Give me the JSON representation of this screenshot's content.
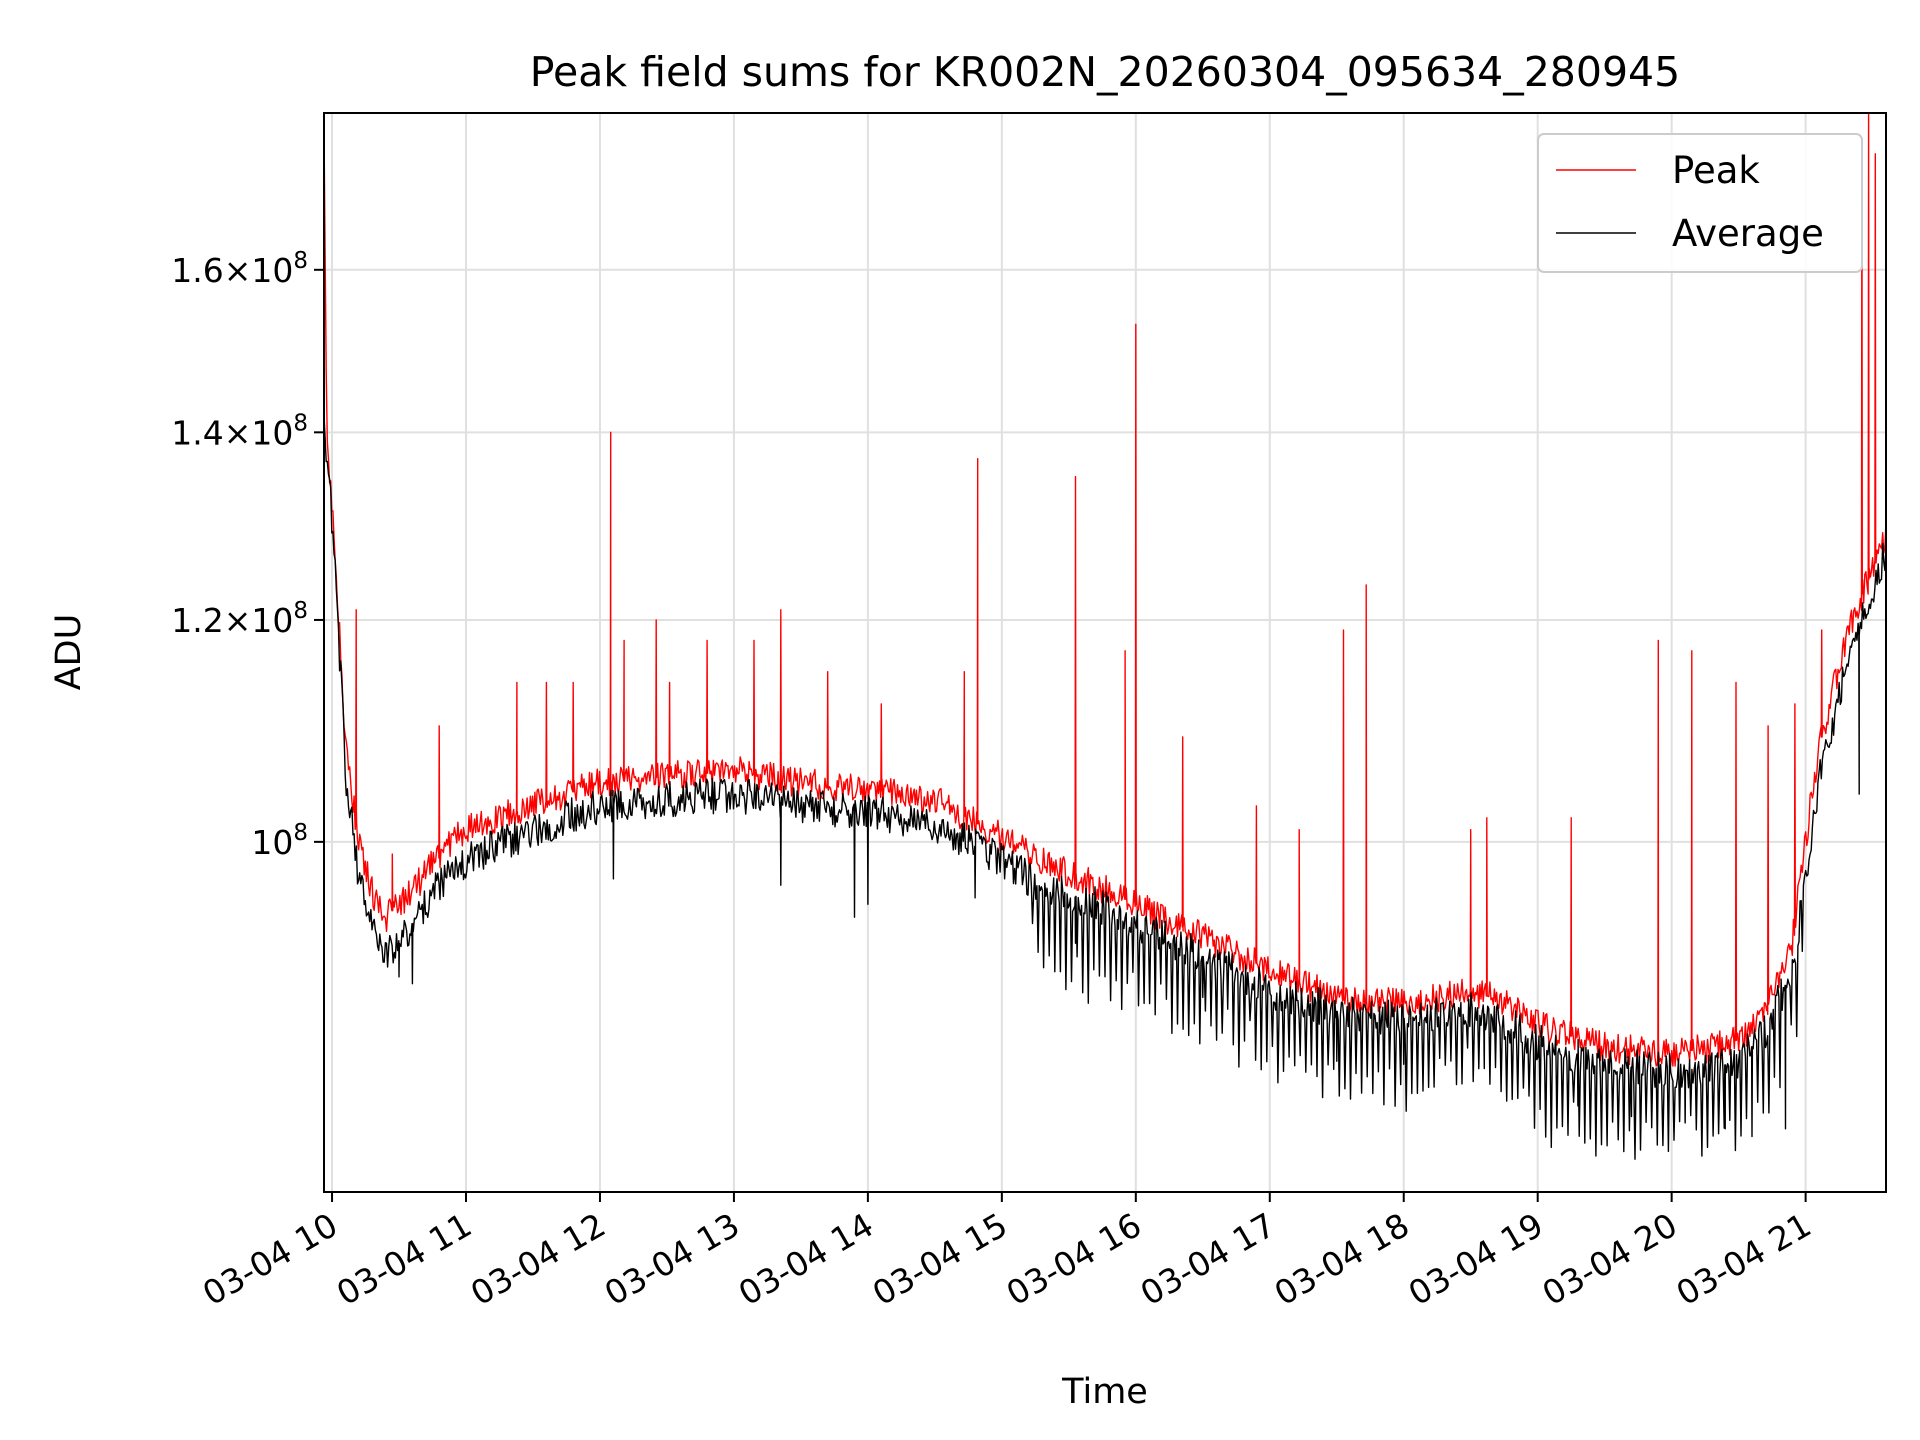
{
  "chart_data": {
    "type": "line",
    "title": "Peak field sums for KR002N_20260304_095634_280945",
    "xlabel": "Time",
    "ylabel": "ADU",
    "x_range_hours": [
      9.94,
      21.6
    ],
    "ylim": [
      75000000,
      182000000
    ],
    "yscale": "log",
    "grid": true,
    "legend_position": "top-right",
    "x_ticks": [
      {
        "hour": 10,
        "label": "03-04 10"
      },
      {
        "hour": 11,
        "label": "03-04 11"
      },
      {
        "hour": 12,
        "label": "03-04 12"
      },
      {
        "hour": 13,
        "label": "03-04 13"
      },
      {
        "hour": 14,
        "label": "03-04 14"
      },
      {
        "hour": 15,
        "label": "03-04 15"
      },
      {
        "hour": 16,
        "label": "03-04 16"
      },
      {
        "hour": 17,
        "label": "03-04 17"
      },
      {
        "hour": 18,
        "label": "03-04 18"
      },
      {
        "hour": 19,
        "label": "03-04 19"
      },
      {
        "hour": 20,
        "label": "03-04 20"
      },
      {
        "hour": 21,
        "label": "03-04 21"
      }
    ],
    "y_ticks": [
      {
        "value": 100000000,
        "mantissa": "",
        "exponent": "8"
      },
      {
        "value": 120000000,
        "mantissa": "1.2",
        "exponent": "8"
      },
      {
        "value": 140000000,
        "mantissa": "1.4",
        "exponent": "8"
      },
      {
        "value": 160000000,
        "mantissa": "1.6",
        "exponent": "8"
      }
    ],
    "series": [
      {
        "name": "Peak",
        "color": "#ff0000",
        "baseline": [
          [
            9.94,
            181000000
          ],
          [
            9.96,
            140000000
          ],
          [
            10.0,
            132000000
          ],
          [
            10.05,
            120000000
          ],
          [
            10.1,
            108000000
          ],
          [
            10.2,
            100000000
          ],
          [
            10.3,
            96000000
          ],
          [
            10.4,
            94000000
          ],
          [
            10.5,
            95000000
          ],
          [
            10.6,
            96000000
          ],
          [
            10.8,
            99000000
          ],
          [
            11.0,
            101000000
          ],
          [
            11.5,
            103000000
          ],
          [
            12.0,
            105000000
          ],
          [
            12.5,
            105500000
          ],
          [
            13.0,
            106000000
          ],
          [
            13.5,
            105000000
          ],
          [
            14.0,
            104500000
          ],
          [
            14.5,
            103500000
          ],
          [
            14.9,
            101000000
          ],
          [
            15.3,
            98500000
          ],
          [
            15.7,
            96500000
          ],
          [
            16.0,
            95000000
          ],
          [
            16.5,
            92500000
          ],
          [
            17.0,
            90000000
          ],
          [
            17.5,
            88000000
          ],
          [
            18.0,
            87500000
          ],
          [
            18.5,
            88500000
          ],
          [
            18.8,
            87500000
          ],
          [
            19.0,
            86000000
          ],
          [
            19.5,
            84500000
          ],
          [
            20.0,
            84000000
          ],
          [
            20.3,
            84500000
          ],
          [
            20.5,
            85000000
          ],
          [
            20.7,
            87000000
          ],
          [
            20.9,
            92000000
          ],
          [
            21.0,
            100000000
          ],
          [
            21.1,
            108000000
          ],
          [
            21.2,
            113000000
          ],
          [
            21.3,
            118000000
          ],
          [
            21.4,
            122000000
          ],
          [
            21.5,
            125000000
          ],
          [
            21.6,
            129000000
          ]
        ],
        "spikes": [
          [
            10.18,
            121000000
          ],
          [
            10.45,
            99000000
          ],
          [
            10.8,
            110000000
          ],
          [
            11.38,
            114000000
          ],
          [
            11.6,
            114000000
          ],
          [
            11.8,
            114000000
          ],
          [
            12.08,
            140000000
          ],
          [
            12.18,
            118000000
          ],
          [
            12.42,
            120000000
          ],
          [
            12.52,
            114000000
          ],
          [
            12.8,
            118000000
          ],
          [
            13.15,
            118000000
          ],
          [
            13.35,
            121000000
          ],
          [
            13.7,
            115000000
          ],
          [
            14.1,
            112000000
          ],
          [
            14.72,
            115000000
          ],
          [
            14.82,
            137000000
          ],
          [
            15.55,
            135000000
          ],
          [
            15.92,
            117000000
          ],
          [
            16.0,
            153000000
          ],
          [
            16.35,
            109000000
          ],
          [
            16.9,
            103000000
          ],
          [
            17.22,
            101000000
          ],
          [
            17.55,
            119000000
          ],
          [
            17.72,
            123500000
          ],
          [
            18.5,
            101000000
          ],
          [
            18.62,
            102000000
          ],
          [
            19.25,
            102000000
          ],
          [
            19.9,
            118000000
          ],
          [
            20.15,
            117000000
          ],
          [
            20.48,
            114000000
          ],
          [
            20.72,
            110000000
          ],
          [
            20.92,
            112000000
          ],
          [
            21.12,
            119000000
          ],
          [
            21.42,
            178000000
          ],
          [
            21.47,
            182000000
          ],
          [
            21.52,
            176000000
          ]
        ]
      },
      {
        "name": "Average",
        "color": "#000000",
        "baseline": [
          [
            9.94,
            142000000
          ],
          [
            9.96,
            138000000
          ],
          [
            10.0,
            130000000
          ],
          [
            10.05,
            118000000
          ],
          [
            10.1,
            106000000
          ],
          [
            10.2,
            97000000
          ],
          [
            10.3,
            93000000
          ],
          [
            10.4,
            91500000
          ],
          [
            10.5,
            92000000
          ],
          [
            10.6,
            93500000
          ],
          [
            10.8,
            96500000
          ],
          [
            11.0,
            98500000
          ],
          [
            11.5,
            101000000
          ],
          [
            12.0,
            103000000
          ],
          [
            12.5,
            103500000
          ],
          [
            13.0,
            104000000
          ],
          [
            13.5,
            103000000
          ],
          [
            14.0,
            102500000
          ],
          [
            14.5,
            101500000
          ],
          [
            14.9,
            99000000
          ],
          [
            15.3,
            96500000
          ],
          [
            15.7,
            95000000
          ],
          [
            16.0,
            93500000
          ],
          [
            16.5,
            91000000
          ],
          [
            17.0,
            88500000
          ],
          [
            17.5,
            87000000
          ],
          [
            18.0,
            86500000
          ],
          [
            18.5,
            87200000
          ],
          [
            18.8,
            86000000
          ],
          [
            19.0,
            84800000
          ],
          [
            19.5,
            83300000
          ],
          [
            20.0,
            82800000
          ],
          [
            20.3,
            83000000
          ],
          [
            20.5,
            83500000
          ],
          [
            20.7,
            85500000
          ],
          [
            20.9,
            90000000
          ],
          [
            21.0,
            97000000
          ],
          [
            21.1,
            105000000
          ],
          [
            21.2,
            110000000
          ],
          [
            21.3,
            115000000
          ],
          [
            21.4,
            119000000
          ],
          [
            21.5,
            123000000
          ],
          [
            21.6,
            127000000
          ]
        ],
        "dips": [
          [
            10.5,
            89500000
          ],
          [
            10.6,
            89000000
          ],
          [
            12.1,
            97000000
          ],
          [
            13.35,
            96500000
          ],
          [
            13.9,
            94000000
          ],
          [
            14.0,
            95000000
          ],
          [
            14.8,
            95500000
          ],
          [
            15.55,
            92000000
          ],
          [
            16.5,
            88000000
          ],
          [
            17.5,
            83500000
          ],
          [
            18.0,
            83300000
          ],
          [
            18.6,
            84000000
          ],
          [
            19.3,
            80500000
          ],
          [
            19.7,
            79800000
          ],
          [
            20.1,
            79500000
          ],
          [
            20.4,
            79000000
          ],
          [
            20.6,
            78500000
          ],
          [
            20.85,
            79000000
          ],
          [
            21.4,
            104000000
          ]
        ]
      }
    ]
  }
}
